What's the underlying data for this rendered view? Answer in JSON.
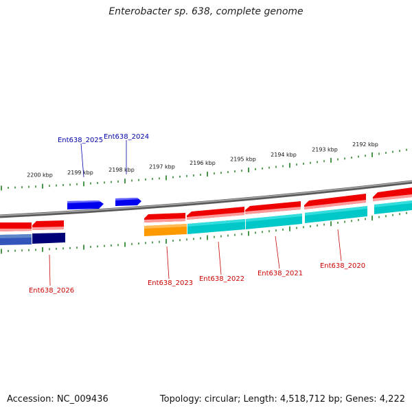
{
  "title": "Enterobacter sp. 638, complete genome",
  "footer": {
    "accession": "Accession: NC_009436",
    "topology": "Topology: circular; Length: 4,518,712 bp; Genes: 4,222"
  },
  "scale": {
    "unit": "kbp",
    "labels": [
      "2200 kbp",
      "2199 kbp",
      "2198 kbp",
      "2197 kbp",
      "2196 kbp",
      "2195 kbp",
      "2194 kbp",
      "2193 kbp",
      "2192 kbp"
    ],
    "tick_color": "#1a7a1a"
  },
  "colors": {
    "backbone": "#808080",
    "forward_gene": "#0000ee",
    "reverse_gene": "#ee0000",
    "cds_teal": "#00c8c8",
    "cds_orange": "#ff9900",
    "cds_navy": "#000077",
    "cds_steel": "#4a6fb0",
    "label_forward": "#0000aa",
    "label_reverse": "#cc0000"
  },
  "genes": [
    {
      "id": "Ent638_2026",
      "strand": "reverse"
    },
    {
      "id": "Ent638_2025",
      "strand": "forward"
    },
    {
      "id": "Ent638_2024",
      "strand": "forward"
    },
    {
      "id": "Ent638_2023",
      "strand": "reverse"
    },
    {
      "id": "Ent638_2022",
      "strand": "reverse"
    },
    {
      "id": "Ent638_2021",
      "strand": "reverse"
    },
    {
      "id": "Ent638_2020",
      "strand": "reverse"
    }
  ]
}
